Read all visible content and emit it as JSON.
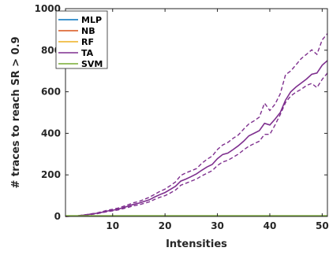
{
  "chart_data": {
    "type": "line",
    "title": "",
    "xlabel": "Intensities",
    "ylabel": "# traces to reach SR > 0.9",
    "xlim": [
      1,
      51
    ],
    "ylim": [
      0,
      1000
    ],
    "xticks": [
      10,
      20,
      30,
      40,
      50
    ],
    "yticks": [
      0,
      200,
      400,
      600,
      800,
      1000
    ],
    "xtick_labels": [
      "10",
      "20",
      "30",
      "40",
      "50"
    ],
    "ytick_labels": [
      "0",
      "200",
      "400",
      "600",
      "800",
      "1000"
    ],
    "grid": false,
    "legend_position": "top-left",
    "x": [
      1,
      2,
      3,
      4,
      5,
      6,
      7,
      8,
      9,
      10,
      11,
      12,
      13,
      14,
      15,
      16,
      17,
      18,
      19,
      20,
      21,
      22,
      23,
      24,
      25,
      26,
      27,
      28,
      29,
      30,
      31,
      32,
      33,
      34,
      35,
      36,
      37,
      38,
      39,
      40,
      41,
      42,
      43,
      44,
      45,
      46,
      47,
      48,
      49,
      50,
      51
    ],
    "series": [
      {
        "name": "MLP",
        "color": "#0072BD",
        "values": [
          1,
          1,
          1,
          1,
          1,
          1,
          1,
          1,
          1,
          1,
          1,
          1,
          1,
          1,
          1,
          1,
          1,
          1,
          1,
          1,
          1,
          1,
          1,
          1,
          1,
          1,
          1,
          1,
          1,
          1,
          1,
          1,
          1,
          1,
          1,
          1,
          1,
          1,
          1,
          1,
          1,
          1,
          1,
          1,
          1,
          1,
          1,
          1,
          1,
          1,
          1
        ]
      },
      {
        "name": "NB",
        "color": "#D95319",
        "values": [
          2,
          2,
          2,
          2,
          2,
          2,
          2,
          2,
          2,
          2,
          2,
          2,
          2,
          2,
          2,
          2,
          2,
          2,
          2,
          2,
          2,
          2,
          2,
          2,
          2,
          2,
          2,
          2,
          2,
          2,
          2,
          2,
          2,
          2,
          2,
          2,
          2,
          2,
          2,
          2,
          2,
          2,
          2,
          2,
          2,
          2,
          2,
          2,
          2,
          2,
          2
        ]
      },
      {
        "name": "RF",
        "color": "#EDB120",
        "values": [
          2,
          2,
          2,
          2,
          2,
          2,
          2,
          2,
          2,
          2,
          2,
          2,
          2,
          2,
          2,
          2,
          2,
          2,
          2,
          2,
          2,
          2,
          2,
          2,
          2,
          2,
          2,
          2,
          2,
          2,
          2,
          2,
          2,
          2,
          2,
          2,
          2,
          2,
          2,
          2,
          2,
          2,
          2,
          2,
          2,
          2,
          2,
          2,
          2,
          2,
          2
        ]
      },
      {
        "name": "TA",
        "color": "#7E2F8E",
        "values": [
          0,
          1,
          2,
          5,
          8,
          12,
          15,
          20,
          26,
          30,
          35,
          42,
          50,
          58,
          64,
          72,
          80,
          93,
          105,
          115,
          130,
          145,
          170,
          180,
          192,
          205,
          222,
          238,
          250,
          278,
          298,
          305,
          322,
          340,
          362,
          388,
          400,
          413,
          448,
          440,
          468,
          500,
          560,
          600,
          623,
          642,
          661,
          684,
          690,
          728,
          750
        ],
        "upper": [
          0,
          1,
          2,
          6,
          9,
          13,
          17,
          23,
          30,
          34,
          40,
          48,
          57,
          66,
          72,
          82,
          92,
          106,
          120,
          132,
          148,
          166,
          197,
          210,
          220,
          230,
          255,
          275,
          290,
          322,
          344,
          356,
          376,
          392,
          420,
          445,
          460,
          478,
          545,
          510,
          540,
          590,
          682,
          700,
          730,
          760,
          780,
          802,
          780,
          850,
          880
        ],
        "lower": [
          0,
          1,
          2,
          4,
          7,
          10,
          13,
          18,
          23,
          27,
          31,
          37,
          44,
          51,
          56,
          63,
          70,
          82,
          92,
          100,
          113,
          127,
          150,
          160,
          170,
          180,
          195,
          208,
          220,
          245,
          262,
          270,
          285,
          300,
          320,
          338,
          350,
          362,
          395,
          395,
          440,
          490,
          548,
          580,
          598,
          612,
          630,
          640,
          620,
          660,
          690
        ]
      },
      {
        "name": "SVM",
        "color": "#77AC30",
        "values": [
          3,
          3,
          3,
          3,
          3,
          3,
          3,
          3,
          3,
          3,
          3,
          3,
          3,
          3,
          3,
          3,
          3,
          3,
          3,
          3,
          3,
          3,
          3,
          3,
          3,
          3,
          3,
          3,
          3,
          3,
          3,
          3,
          3,
          3,
          3,
          3,
          3,
          3,
          3,
          3,
          3,
          3,
          3,
          3,
          3,
          3,
          3,
          3,
          3,
          3,
          3
        ]
      }
    ]
  }
}
